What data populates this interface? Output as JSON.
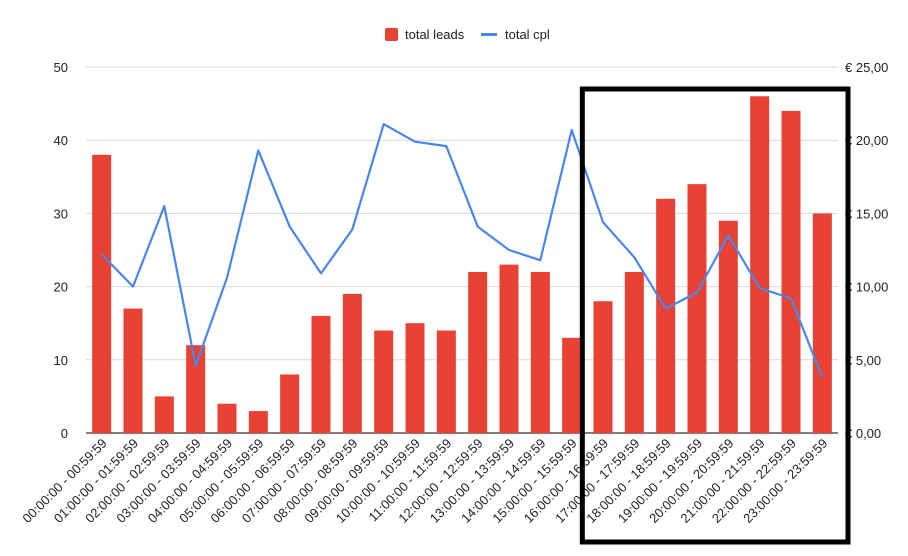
{
  "chart_data": {
    "type": "bar",
    "categories": [
      "00:00:00 - 00:59:59",
      "01:00:00 - 01:59:59",
      "02:00:00 - 02:59:59",
      "03:00:00 - 03:59:59",
      "04:00:00 - 04:59:59",
      "05:00:00 - 05:59:59",
      "06:00:00 - 06:59:59",
      "07:00:00 - 07:59:59",
      "08:00:00 - 08:59:59",
      "09:00:00 - 09:59:59",
      "10:00:00 - 10:59:59",
      "11:00:00 - 11:59:59",
      "12:00:00 - 12:59:59",
      "13:00:00 - 13:59:59",
      "14:00:00 - 14:59:59",
      "15:00:00 - 15:59:59",
      "16:00:00 - 16:59:59",
      "17:00:00 - 17:59:59",
      "18:00:00 - 18:59:59",
      "19:00:00 - 19:59:59",
      "20:00:00 - 20:59:59",
      "21:00:00 - 21:59:59",
      "22:00:00 - 22:59:59",
      "23:00:00 - 23:59:59"
    ],
    "series": [
      {
        "name": "total leads",
        "type": "bar",
        "axis": "left",
        "color": "#E94235",
        "values": [
          38,
          17,
          5,
          12,
          4,
          3,
          8,
          16,
          19,
          14,
          15,
          14,
          22,
          23,
          22,
          13,
          18,
          22,
          32,
          34,
          29,
          46,
          44,
          30
        ]
      },
      {
        "name": "total cpl",
        "type": "line",
        "axis": "right",
        "color": "#4A86E8",
        "values": [
          12.2,
          10.0,
          15.5,
          4.6,
          10.6,
          19.3,
          14.1,
          10.9,
          13.9,
          21.1,
          19.9,
          19.6,
          14.1,
          12.5,
          11.8,
          20.7,
          14.4,
          12.0,
          8.5,
          9.6,
          13.5,
          9.9,
          9.2,
          3.8
        ]
      }
    ],
    "y_left": {
      "ylim": [
        0,
        50
      ],
      "ticks": [
        "0",
        "10",
        "20",
        "30",
        "40",
        "50"
      ]
    },
    "y_right": {
      "ylim": [
        0,
        25
      ],
      "ticks": [
        "€ 0,00",
        "€ 5,00",
        "€ 10,00",
        "€ 15,00",
        "€ 20,00",
        "€ 25,00"
      ]
    },
    "grid": true,
    "legend": "top-center",
    "highlight": {
      "from": "16:00:00 - 16:59:59",
      "to": "23:00:00 - 23:59:59",
      "color": "#000000"
    }
  }
}
